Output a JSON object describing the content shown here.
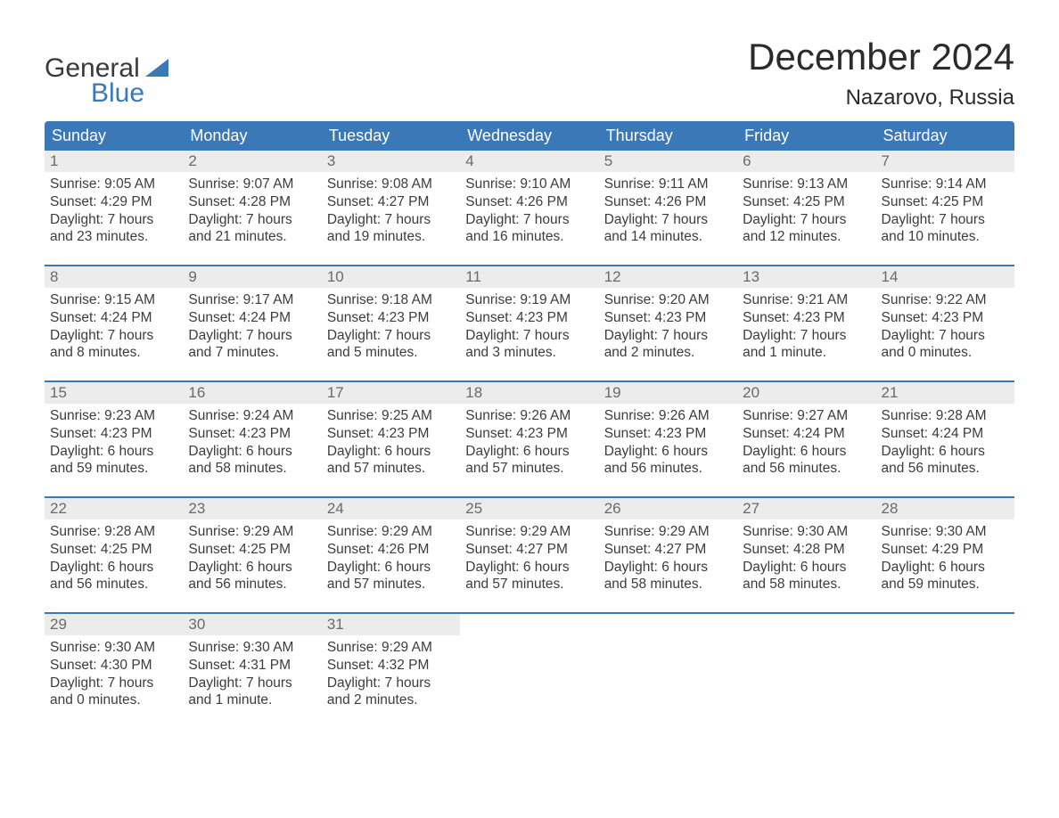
{
  "brand": {
    "word1": "General",
    "word2": "Blue",
    "brand_color": "#3b78b8"
  },
  "header": {
    "month_title": "December 2024",
    "location": "Nazarovo, Russia"
  },
  "theme": {
    "header_bg": "#3b78b8",
    "header_text": "#ffffff",
    "row_border": "#3b78b8",
    "date_bg": "#ececec",
    "date_text": "#6a6a6a",
    "body_text": "#3c3c3c",
    "title_text": "#2b2b2b",
    "page_bg": "#ffffff"
  },
  "day_names": [
    "Sunday",
    "Monday",
    "Tuesday",
    "Wednesday",
    "Thursday",
    "Friday",
    "Saturday"
  ],
  "weeks": [
    [
      {
        "date": "1",
        "sunrise": "Sunrise: 9:05 AM",
        "sunset": "Sunset: 4:29 PM",
        "dl1": "Daylight: 7 hours",
        "dl2": "and 23 minutes."
      },
      {
        "date": "2",
        "sunrise": "Sunrise: 9:07 AM",
        "sunset": "Sunset: 4:28 PM",
        "dl1": "Daylight: 7 hours",
        "dl2": "and 21 minutes."
      },
      {
        "date": "3",
        "sunrise": "Sunrise: 9:08 AM",
        "sunset": "Sunset: 4:27 PM",
        "dl1": "Daylight: 7 hours",
        "dl2": "and 19 minutes."
      },
      {
        "date": "4",
        "sunrise": "Sunrise: 9:10 AM",
        "sunset": "Sunset: 4:26 PM",
        "dl1": "Daylight: 7 hours",
        "dl2": "and 16 minutes."
      },
      {
        "date": "5",
        "sunrise": "Sunrise: 9:11 AM",
        "sunset": "Sunset: 4:26 PM",
        "dl1": "Daylight: 7 hours",
        "dl2": "and 14 minutes."
      },
      {
        "date": "6",
        "sunrise": "Sunrise: 9:13 AM",
        "sunset": "Sunset: 4:25 PM",
        "dl1": "Daylight: 7 hours",
        "dl2": "and 12 minutes."
      },
      {
        "date": "7",
        "sunrise": "Sunrise: 9:14 AM",
        "sunset": "Sunset: 4:25 PM",
        "dl1": "Daylight: 7 hours",
        "dl2": "and 10 minutes."
      }
    ],
    [
      {
        "date": "8",
        "sunrise": "Sunrise: 9:15 AM",
        "sunset": "Sunset: 4:24 PM",
        "dl1": "Daylight: 7 hours",
        "dl2": "and 8 minutes."
      },
      {
        "date": "9",
        "sunrise": "Sunrise: 9:17 AM",
        "sunset": "Sunset: 4:24 PM",
        "dl1": "Daylight: 7 hours",
        "dl2": "and 7 minutes."
      },
      {
        "date": "10",
        "sunrise": "Sunrise: 9:18 AM",
        "sunset": "Sunset: 4:23 PM",
        "dl1": "Daylight: 7 hours",
        "dl2": "and 5 minutes."
      },
      {
        "date": "11",
        "sunrise": "Sunrise: 9:19 AM",
        "sunset": "Sunset: 4:23 PM",
        "dl1": "Daylight: 7 hours",
        "dl2": "and 3 minutes."
      },
      {
        "date": "12",
        "sunrise": "Sunrise: 9:20 AM",
        "sunset": "Sunset: 4:23 PM",
        "dl1": "Daylight: 7 hours",
        "dl2": "and 2 minutes."
      },
      {
        "date": "13",
        "sunrise": "Sunrise: 9:21 AM",
        "sunset": "Sunset: 4:23 PM",
        "dl1": "Daylight: 7 hours",
        "dl2": "and 1 minute."
      },
      {
        "date": "14",
        "sunrise": "Sunrise: 9:22 AM",
        "sunset": "Sunset: 4:23 PM",
        "dl1": "Daylight: 7 hours",
        "dl2": "and 0 minutes."
      }
    ],
    [
      {
        "date": "15",
        "sunrise": "Sunrise: 9:23 AM",
        "sunset": "Sunset: 4:23 PM",
        "dl1": "Daylight: 6 hours",
        "dl2": "and 59 minutes."
      },
      {
        "date": "16",
        "sunrise": "Sunrise: 9:24 AM",
        "sunset": "Sunset: 4:23 PM",
        "dl1": "Daylight: 6 hours",
        "dl2": "and 58 minutes."
      },
      {
        "date": "17",
        "sunrise": "Sunrise: 9:25 AM",
        "sunset": "Sunset: 4:23 PM",
        "dl1": "Daylight: 6 hours",
        "dl2": "and 57 minutes."
      },
      {
        "date": "18",
        "sunrise": "Sunrise: 9:26 AM",
        "sunset": "Sunset: 4:23 PM",
        "dl1": "Daylight: 6 hours",
        "dl2": "and 57 minutes."
      },
      {
        "date": "19",
        "sunrise": "Sunrise: 9:26 AM",
        "sunset": "Sunset: 4:23 PM",
        "dl1": "Daylight: 6 hours",
        "dl2": "and 56 minutes."
      },
      {
        "date": "20",
        "sunrise": "Sunrise: 9:27 AM",
        "sunset": "Sunset: 4:24 PM",
        "dl1": "Daylight: 6 hours",
        "dl2": "and 56 minutes."
      },
      {
        "date": "21",
        "sunrise": "Sunrise: 9:28 AM",
        "sunset": "Sunset: 4:24 PM",
        "dl1": "Daylight: 6 hours",
        "dl2": "and 56 minutes."
      }
    ],
    [
      {
        "date": "22",
        "sunrise": "Sunrise: 9:28 AM",
        "sunset": "Sunset: 4:25 PM",
        "dl1": "Daylight: 6 hours",
        "dl2": "and 56 minutes."
      },
      {
        "date": "23",
        "sunrise": "Sunrise: 9:29 AM",
        "sunset": "Sunset: 4:25 PM",
        "dl1": "Daylight: 6 hours",
        "dl2": "and 56 minutes."
      },
      {
        "date": "24",
        "sunrise": "Sunrise: 9:29 AM",
        "sunset": "Sunset: 4:26 PM",
        "dl1": "Daylight: 6 hours",
        "dl2": "and 57 minutes."
      },
      {
        "date": "25",
        "sunrise": "Sunrise: 9:29 AM",
        "sunset": "Sunset: 4:27 PM",
        "dl1": "Daylight: 6 hours",
        "dl2": "and 57 minutes."
      },
      {
        "date": "26",
        "sunrise": "Sunrise: 9:29 AM",
        "sunset": "Sunset: 4:27 PM",
        "dl1": "Daylight: 6 hours",
        "dl2": "and 58 minutes."
      },
      {
        "date": "27",
        "sunrise": "Sunrise: 9:30 AM",
        "sunset": "Sunset: 4:28 PM",
        "dl1": "Daylight: 6 hours",
        "dl2": "and 58 minutes."
      },
      {
        "date": "28",
        "sunrise": "Sunrise: 9:30 AM",
        "sunset": "Sunset: 4:29 PM",
        "dl1": "Daylight: 6 hours",
        "dl2": "and 59 minutes."
      }
    ],
    [
      {
        "date": "29",
        "sunrise": "Sunrise: 9:30 AM",
        "sunset": "Sunset: 4:30 PM",
        "dl1": "Daylight: 7 hours",
        "dl2": "and 0 minutes."
      },
      {
        "date": "30",
        "sunrise": "Sunrise: 9:30 AM",
        "sunset": "Sunset: 4:31 PM",
        "dl1": "Daylight: 7 hours",
        "dl2": "and 1 minute."
      },
      {
        "date": "31",
        "sunrise": "Sunrise: 9:29 AM",
        "sunset": "Sunset: 4:32 PM",
        "dl1": "Daylight: 7 hours",
        "dl2": "and 2 minutes."
      },
      null,
      null,
      null,
      null
    ]
  ]
}
